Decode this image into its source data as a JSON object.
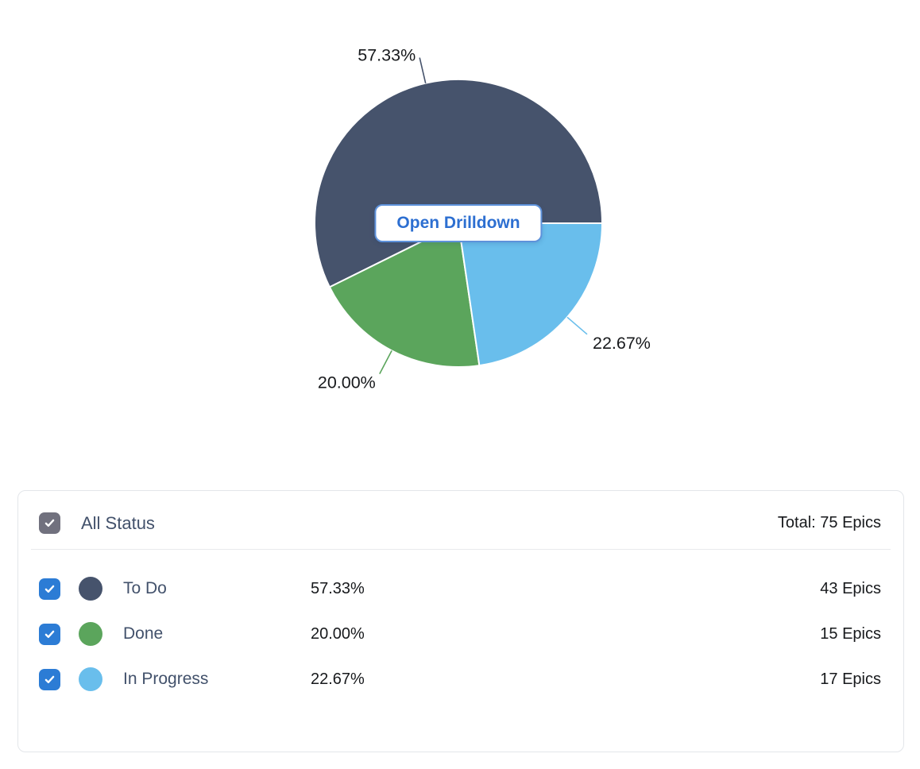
{
  "chart_data": {
    "type": "pie",
    "categories": [
      "To Do",
      "Done",
      "In Progress"
    ],
    "values": [
      43,
      15,
      17
    ],
    "percent_values": [
      57.33,
      20.0,
      22.67
    ],
    "percent_labels": [
      "57.33%",
      "20.00%",
      "22.67%"
    ],
    "colors": [
      "#46536C",
      "#5BA55C",
      "#69BEEC"
    ],
    "total": 75,
    "legend_position": "bottom-panel",
    "label_style": "percent-outside-with-leader-line",
    "start_angle_deg": 0,
    "direction": "counterclockwise"
  },
  "overlay": {
    "drilldown_button_label": "Open Drilldown"
  },
  "legend_panel": {
    "header": {
      "label": "All Status",
      "checked": true,
      "total_label": "Total: 75 Epics"
    },
    "rows": [
      {
        "label": "To Do",
        "percent": "57.33%",
        "count_label": "43 Epics",
        "color": "#46536C",
        "checked": true
      },
      {
        "label": "Done",
        "percent": "20.00%",
        "count_label": "15 Epics",
        "color": "#5BA55C",
        "checked": true
      },
      {
        "label": "In Progress",
        "percent": "22.67%",
        "count_label": "17 Epics",
        "color": "#69BEEC",
        "checked": true
      }
    ]
  },
  "colors": {
    "checkbox_blue": "#2C7CD5",
    "checkbox_gray": "#71717E",
    "button_text": "#2D6FD1",
    "button_border": "#5E92DB",
    "panel_border": "#E3E6EA",
    "divider": "#E9EAED",
    "text_slate": "#42516B",
    "text_dark": "#17191C"
  }
}
